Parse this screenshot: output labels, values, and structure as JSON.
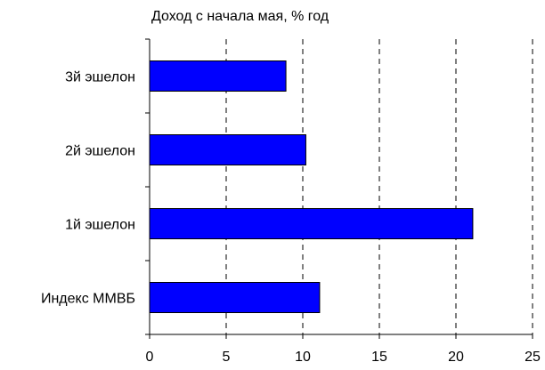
{
  "chart_data": {
    "type": "bar",
    "orientation": "horizontal",
    "title": "Доход с начала мая, % год",
    "categories": [
      "3й эшелон",
      "2й эшелон",
      "1й эшелон",
      "Индекс ММВБ"
    ],
    "values": [
      8.9,
      10.2,
      21.1,
      11.1
    ],
    "xlabel": "",
    "ylabel": "",
    "xlim": [
      0,
      25
    ],
    "x_ticks": [
      "0",
      "5",
      "10",
      "15",
      "20",
      "25"
    ],
    "grid": "vertical dashed",
    "colors": {
      "bar": "#0000ff",
      "bar_outline": "#000000",
      "grid": "#000000"
    }
  }
}
